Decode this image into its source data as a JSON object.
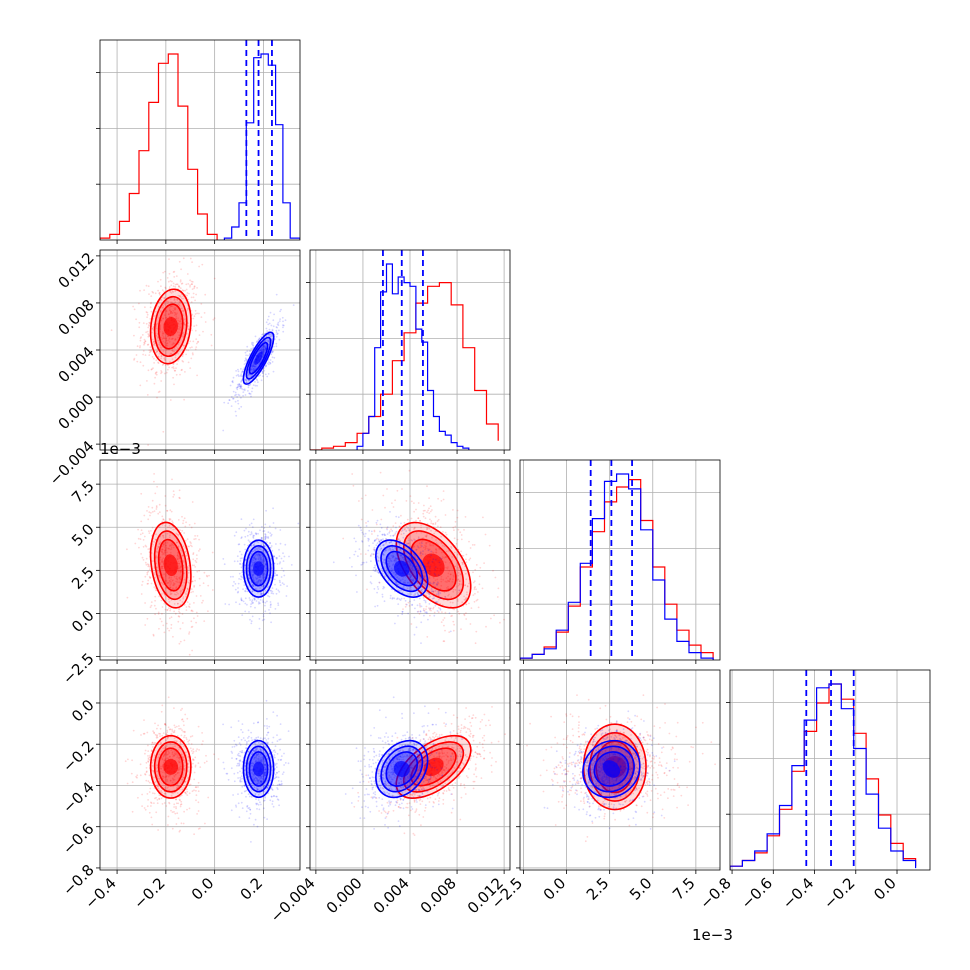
{
  "chart_data": {
    "type": "corner",
    "parameters": [
      "p0",
      "p1",
      "p2",
      "p3"
    ],
    "axis_ranges": {
      "p0": [
        -0.47,
        0.35
      ],
      "p1": [
        -0.0045,
        0.0125
      ],
      "p2": [
        -0.0027,
        0.0089
      ],
      "p3": [
        -0.81,
        0.16
      ]
    },
    "ticks": {
      "p0": {
        "values": [
          -0.4,
          -0.2,
          0.0,
          0.2
        ],
        "labels": [
          "−0.4",
          "−0.2",
          "0.0",
          "0.2"
        ]
      },
      "p1": {
        "values": [
          -0.004,
          0.0,
          0.004,
          0.008,
          0.012
        ],
        "labels": [
          "−0.004",
          "0.000",
          "0.004",
          "0.008",
          "0.012"
        ]
      },
      "p2": {
        "values": [
          -0.0025,
          0.0,
          0.0025,
          0.005,
          0.0075
        ],
        "labels": [
          "−2.5",
          "0.0",
          "2.5",
          "5.0",
          "7.5"
        ],
        "offset_text": "1e−3"
      },
      "p3": {
        "values": [
          -0.8,
          -0.6,
          -0.4,
          -0.2,
          0.0
        ],
        "labels": [
          "−0.8",
          "−0.6",
          "−0.4",
          "−0.2",
          "0.0"
        ]
      }
    },
    "grid": true,
    "series": [
      {
        "color": "#ff0000",
        "means": [
          -0.18,
          0.006,
          0.0028,
          -0.31
        ],
        "stds": [
          0.06,
          0.0023,
          0.0018,
          0.11
        ],
        "correlations": [
          [
            0,
            1,
            0.15
          ],
          [
            0,
            2,
            -0.25
          ],
          [
            0,
            3,
            0.0
          ],
          [
            1,
            2,
            -0.5
          ],
          [
            1,
            3,
            0.55
          ],
          [
            2,
            3,
            0.0
          ]
        ],
        "histograms": {
          "p0": {
            "edges": [
              -0.47,
              -0.43,
              -0.39,
              -0.35,
              -0.31,
              -0.27,
              -0.23,
              -0.19,
              -0.15,
              -0.11,
              -0.07,
              -0.03,
              0.01
            ],
            "counts": [
              0.01,
              0.03,
              0.1,
              0.25,
              0.48,
              0.74,
              0.95,
              1.0,
              0.72,
              0.38,
              0.14,
              0.03
            ]
          },
          "p1": {
            "edges": [
              -0.0045,
              -0.0035,
              -0.0025,
              -0.0015,
              -0.0005,
              0.0005,
              0.0015,
              0.0025,
              0.0035,
              0.0045,
              0.0055,
              0.0065,
              0.0075,
              0.0085,
              0.0095,
              0.0105,
              0.0115
            ],
            "counts": [
              0.0,
              0.01,
              0.02,
              0.04,
              0.09,
              0.18,
              0.3,
              0.48,
              0.63,
              0.79,
              0.88,
              0.9,
              0.78,
              0.55,
              0.32,
              0.14,
              0.05
            ]
          },
          "p2": {
            "edges": [
              -0.0027,
              -0.002,
              -0.0013,
              -0.0006,
              0.0001,
              0.0008,
              0.0015,
              0.0022,
              0.0029,
              0.0036,
              0.0043,
              0.005,
              0.0057,
              0.0064,
              0.0071,
              0.0078,
              0.0085
            ],
            "counts": [
              0.01,
              0.03,
              0.07,
              0.15,
              0.29,
              0.5,
              0.69,
              0.85,
              0.93,
              0.97,
              0.75,
              0.5,
              0.3,
              0.16,
              0.08,
              0.04
            ]
          },
          "p3": {
            "edges": [
              -0.81,
              -0.75,
              -0.69,
              -0.63,
              -0.57,
              -0.51,
              -0.45,
              -0.39,
              -0.33,
              -0.27,
              -0.21,
              -0.15,
              -0.09,
              -0.03,
              0.03,
              0.09
            ],
            "counts": [
              0.02,
              0.05,
              0.09,
              0.18,
              0.32,
              0.52,
              0.73,
              0.88,
              0.98,
              0.9,
              0.72,
              0.48,
              0.29,
              0.14,
              0.06,
              0.02
            ]
          }
        }
      },
      {
        "color": "#0000ff",
        "means": [
          0.18,
          0.0033,
          0.0026,
          -0.32
        ],
        "stds": [
          0.045,
          0.0016,
          0.0012,
          0.1
        ],
        "correlations": [
          [
            0,
            1,
            0.8
          ],
          [
            0,
            2,
            0.0
          ],
          [
            0,
            3,
            0.0
          ],
          [
            1,
            2,
            -0.45
          ],
          [
            1,
            3,
            0.3
          ],
          [
            2,
            3,
            0.1
          ]
        ],
        "quantile_lines": {
          "p0": [
            0.13,
            0.18,
            0.235
          ],
          "p1": [
            0.0017,
            0.0033,
            0.0051
          ],
          "p2": [
            0.0014,
            0.0026,
            0.0038
          ],
          "p3": [
            -0.44,
            -0.32,
            -0.21
          ]
        },
        "histograms": {
          "p0": {
            "edges": [
              0.04,
              0.07,
              0.1,
              0.13,
              0.16,
              0.19,
              0.22,
              0.25,
              0.28,
              0.31,
              0.35
            ],
            "counts": [
              0.01,
              0.07,
              0.2,
              0.63,
              0.98,
              1.0,
              0.94,
              0.62,
              0.2,
              0.01
            ]
          },
          "p1": {
            "edges": [
              -0.0005,
              0.0,
              0.0005,
              0.001,
              0.0015,
              0.002,
              0.0025,
              0.003,
              0.0035,
              0.004,
              0.0045,
              0.005,
              0.0055,
              0.006,
              0.0065,
              0.007,
              0.0075,
              0.008,
              0.0085,
              0.009
            ],
            "counts": [
              0.02,
              0.09,
              0.18,
              0.55,
              0.85,
              1.0,
              0.84,
              0.93,
              0.9,
              0.88,
              0.65,
              0.58,
              0.32,
              0.18,
              0.1,
              0.08,
              0.04,
              0.02,
              0.01
            ]
          },
          "p2": {
            "edges": [
              -0.0027,
              -0.002,
              -0.0013,
              -0.0006,
              0.0001,
              0.0008,
              0.0015,
              0.0022,
              0.0029,
              0.0036,
              0.0043,
              0.005,
              0.0057,
              0.0064,
              0.0071,
              0.0078,
              0.0085
            ],
            "counts": [
              0.01,
              0.03,
              0.06,
              0.16,
              0.31,
              0.52,
              0.76,
              0.96,
              1.0,
              0.92,
              0.7,
              0.43,
              0.22,
              0.1,
              0.04,
              0.01
            ]
          },
          "p3": {
            "edges": [
              -0.81,
              -0.75,
              -0.69,
              -0.63,
              -0.57,
              -0.51,
              -0.45,
              -0.39,
              -0.33,
              -0.27,
              -0.21,
              -0.15,
              -0.09,
              -0.03,
              0.03,
              0.09
            ],
            "counts": [
              0.02,
              0.05,
              0.1,
              0.19,
              0.34,
              0.55,
              0.79,
              0.96,
              0.98,
              0.85,
              0.64,
              0.4,
              0.22,
              0.1,
              0.05,
              0.01
            ]
          }
        }
      }
    ]
  }
}
